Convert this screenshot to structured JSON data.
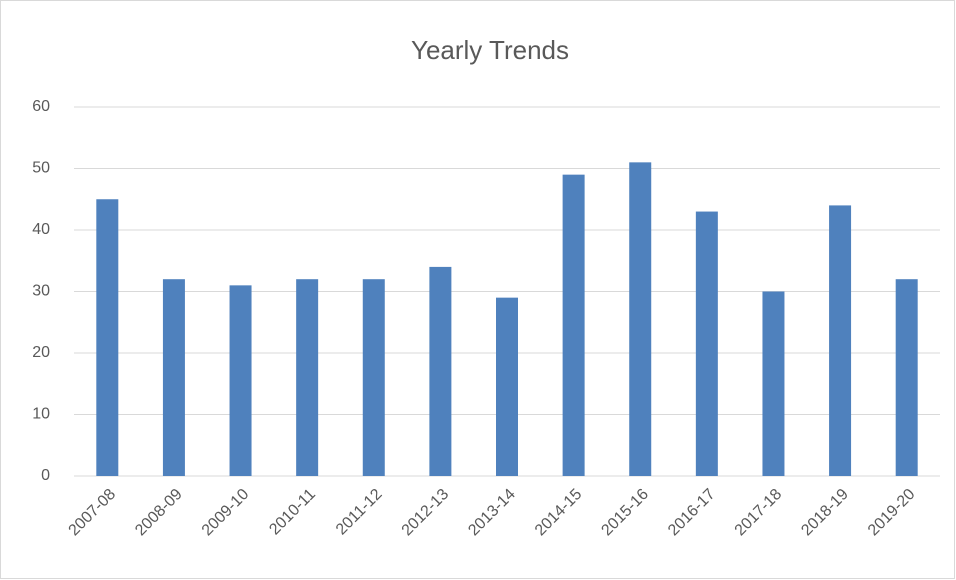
{
  "chart_data": {
    "type": "bar",
    "title": "Yearly Trends",
    "categories": [
      "2007-08",
      "2008-09",
      "2009-10",
      "2010-11",
      "2011-12",
      "2012-13",
      "2013-14",
      "2014-15",
      "2015-16",
      "2016-17",
      "2017-18",
      "2018-19",
      "2019-20"
    ],
    "values": [
      45,
      32,
      31,
      32,
      32,
      34,
      29,
      49,
      51,
      43,
      30,
      44,
      32
    ],
    "color": "#4f81bd",
    "ylim": [
      0,
      60
    ],
    "yticks": [
      0,
      10,
      20,
      30,
      40,
      50,
      60
    ],
    "grid": true
  }
}
